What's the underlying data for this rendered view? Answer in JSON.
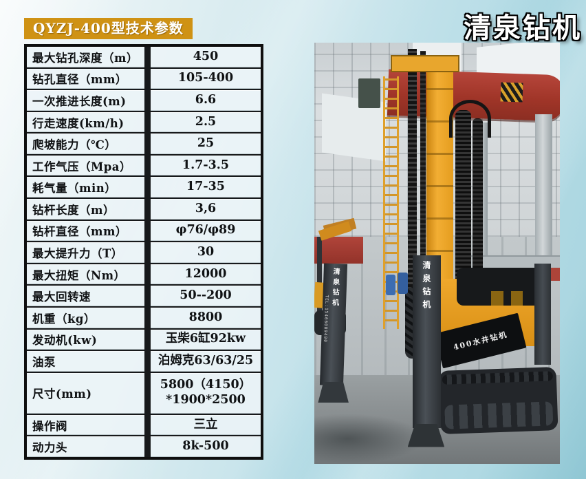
{
  "header": {
    "badge": "QYZJ-400型技术参数",
    "brand": "清泉钻机"
  },
  "spec_table": {
    "rows": [
      {
        "label": "最大钻孔深度（m）",
        "value": "450"
      },
      {
        "label": "钻孔直径（mm）",
        "value": "105-400"
      },
      {
        "label": "一次推进长度(m)",
        "value": "6.6"
      },
      {
        "label": "行走速度(km/h)",
        "value": "2.5"
      },
      {
        "label": "爬坡能力（℃）",
        "value": "25"
      },
      {
        "label": "工作气压（Mpa）",
        "value": "1.7-3.5"
      },
      {
        "label": "耗气量（min）",
        "value": "17-35"
      },
      {
        "label": "钻杆长度（m）",
        "value": "3,6"
      },
      {
        "label": "钻杆直径（mm）",
        "value": "φ76/φ89"
      },
      {
        "label": "最大提升力（T）",
        "value": "30"
      },
      {
        "label": "最大扭矩（Nm）",
        "value": "12000"
      },
      {
        "label": "最大回转速",
        "value": "50--200"
      },
      {
        "label": "机重（kg）",
        "value": "8800"
      },
      {
        "label": "发动机(kw)",
        "value": "玉柴6缸92kw"
      },
      {
        "label": "油泵",
        "value": "泊姆克63/63/25"
      },
      {
        "label": "尺寸(mm)",
        "value": "5800（4150）\n*1900*2500"
      },
      {
        "label": "操作阀",
        "value": "三立"
      },
      {
        "label": "动力头",
        "value": "8k-500"
      }
    ]
  },
  "photo": {
    "left_leg_text": "清泉钻机",
    "left_leg_tel": "TEL:15466089400",
    "center_leg_text": "清泉钻机",
    "panel_text": "400水井钻机"
  },
  "colors": {
    "badge_bg": "#cf9214",
    "crane_red": "#a8392e",
    "rig_yellow": "#e8a32a",
    "background_blue": "#aed7e2"
  }
}
